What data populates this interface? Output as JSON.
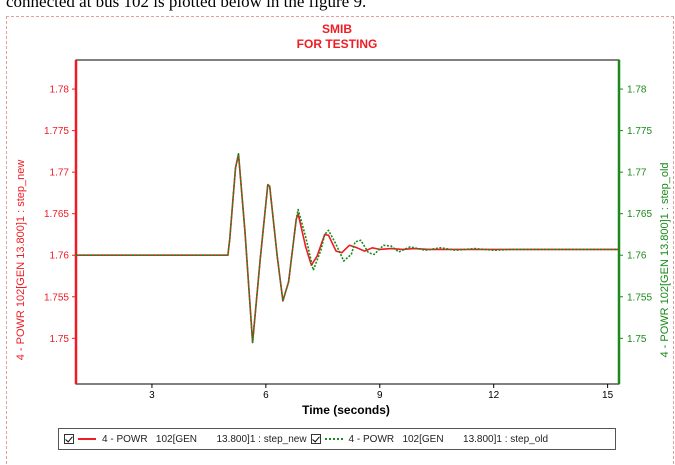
{
  "caption": "connected at bus 102 is plotted below in the figure 9.",
  "chart_data": {
    "type": "line",
    "title": "SMIB",
    "subtitle": "FOR TESTING",
    "xlabel": "Time (seconds)",
    "ylabel_left": "4 - POWR   102[GEN       13.800]1 : step_new",
    "ylabel_right": "4 - POWR   102[GEN       13.800]1 : step_old",
    "xlim": [
      1.0,
      15.3
    ],
    "ylim": [
      1.7445,
      1.7835
    ],
    "x_ticks": [
      3,
      6,
      9,
      12,
      15
    ],
    "x_tick_labels": [
      "3",
      "6",
      "9",
      "12",
      "15"
    ],
    "y_ticks": [
      1.75,
      1.755,
      1.76,
      1.765,
      1.77,
      1.775,
      1.78
    ],
    "y_tick_labels": [
      "1.75",
      "1.755",
      "1.76",
      "1.765",
      "1.77",
      "1.775",
      "1.78"
    ],
    "grid": false,
    "legend_position": "bottom",
    "series": [
      {
        "name": "4 - POWR   102[GEN       13.800]1 : step_new",
        "color": "#ee1c24",
        "style": "solid",
        "x": [
          1.0,
          5.0,
          5.05,
          5.2,
          5.28,
          5.45,
          5.65,
          5.85,
          6.05,
          6.1,
          6.3,
          6.45,
          6.6,
          6.8,
          6.85,
          7.05,
          7.2,
          7.35,
          7.55,
          7.65,
          7.85,
          8.0,
          8.2,
          8.4,
          8.6,
          8.8,
          9.0,
          9.3,
          9.6,
          9.9,
          10.3,
          10.8,
          11.5,
          12.5,
          15.3
        ],
        "y": [
          1.76,
          1.76,
          1.762,
          1.7705,
          1.7722,
          1.7628,
          1.7495,
          1.7595,
          1.7685,
          1.7683,
          1.7598,
          1.7545,
          1.7568,
          1.7643,
          1.765,
          1.761,
          1.7588,
          1.7599,
          1.7625,
          1.7624,
          1.7605,
          1.7603,
          1.7612,
          1.7609,
          1.7605,
          1.7609,
          1.7607,
          1.7608,
          1.7607,
          1.7608,
          1.7607,
          1.7607,
          1.7607,
          1.7607,
          1.7607
        ]
      },
      {
        "name": "4 - POWR   102[GEN       13.800]1 : step_old",
        "color": "#1a8a1a",
        "style": "dotted",
        "x": [
          1.0,
          5.0,
          5.05,
          5.2,
          5.28,
          5.45,
          5.65,
          5.85,
          6.05,
          6.1,
          6.3,
          6.45,
          6.6,
          6.8,
          6.85,
          7.05,
          7.25,
          7.45,
          7.55,
          7.65,
          7.85,
          8.05,
          8.25,
          8.35,
          8.5,
          8.7,
          8.85,
          9.1,
          9.3,
          9.5,
          9.8,
          10.2,
          10.6,
          11.0,
          11.5,
          12.0,
          12.5,
          15.3
        ],
        "y": [
          1.76,
          1.76,
          1.762,
          1.7705,
          1.7722,
          1.7628,
          1.7495,
          1.7595,
          1.7685,
          1.7683,
          1.7598,
          1.7545,
          1.7568,
          1.7643,
          1.7655,
          1.7622,
          1.7582,
          1.7606,
          1.7625,
          1.763,
          1.7613,
          1.7593,
          1.7601,
          1.7616,
          1.7618,
          1.7603,
          1.7601,
          1.7612,
          1.7611,
          1.7604,
          1.761,
          1.7606,
          1.7609,
          1.7606,
          1.7608,
          1.7606,
          1.7607,
          1.7607
        ]
      }
    ]
  },
  "legend": {
    "items": [
      {
        "label": "4 - POWR   102[GEN       13.800]1 : step_new",
        "color": "#ee1c24"
      },
      {
        "label": "4 - POWR   102[GEN       13.800]1 : step_old",
        "color": "#1a8a1a"
      }
    ]
  }
}
